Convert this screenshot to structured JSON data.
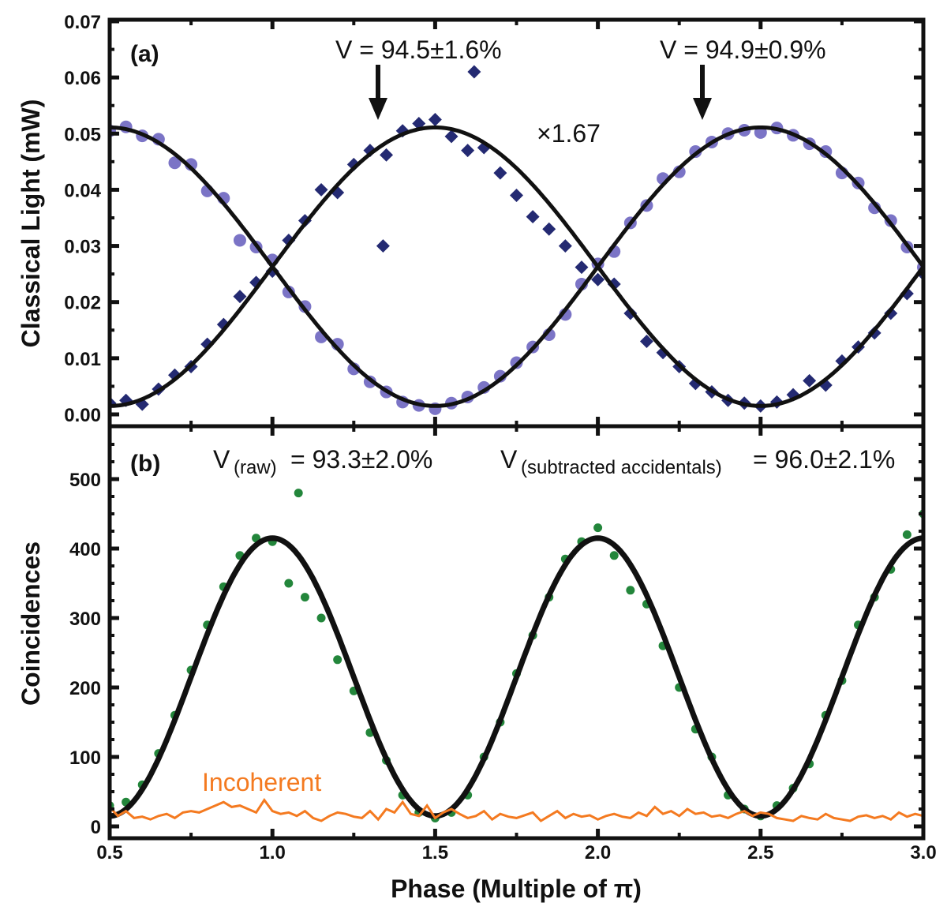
{
  "chart_data": [
    {
      "panel_label": "(a)",
      "type": "scatter",
      "ylabel": "Classical Light (mW)",
      "ylim": [
        0,
        0.07
      ],
      "xlim": [
        0.5,
        3.0
      ],
      "yticks": [
        "0.00",
        "0.01",
        "0.02",
        "0.03",
        "0.04",
        "0.05",
        "0.06",
        "0.07"
      ],
      "grid": false,
      "colors": {
        "circles": "#7b74c6",
        "diamonds": "#242a72",
        "fit": "#111111"
      },
      "annotations": {
        "v1": "V = 94.5±1.6%",
        "v2": "V = 94.9±0.9%",
        "scale": "×1.67"
      },
      "series": [
        {
          "marker": "circle",
          "x": [
            0.5,
            0.55,
            0.6,
            0.65,
            0.7,
            0.75,
            0.8,
            0.85,
            0.9,
            0.95,
            1.0,
            1.05,
            1.1,
            1.15,
            1.2,
            1.25,
            1.3,
            1.35,
            1.4,
            1.45,
            1.5,
            1.55,
            1.6,
            1.65,
            1.7,
            1.75,
            1.8,
            1.85,
            1.9,
            1.95,
            2.0,
            2.05,
            2.1,
            2.15,
            2.2,
            2.25,
            2.3,
            2.35,
            2.4,
            2.45,
            2.5,
            2.55,
            2.6,
            2.65,
            2.7,
            2.75,
            2.8,
            2.85,
            2.9,
            2.95,
            3.0
          ],
          "y": [
            0.0505,
            0.0512,
            0.0496,
            0.049,
            0.0448,
            0.0445,
            0.0398,
            0.0385,
            0.031,
            0.0298,
            0.0275,
            0.0218,
            0.0192,
            0.0138,
            0.0125,
            0.0081,
            0.0058,
            0.004,
            0.0022,
            0.0016,
            0.001,
            0.002,
            0.0031,
            0.0048,
            0.0068,
            0.0092,
            0.012,
            0.0142,
            0.0178,
            0.0232,
            0.0268,
            0.029,
            0.0341,
            0.0372,
            0.042,
            0.0432,
            0.0468,
            0.0485,
            0.05,
            0.0506,
            0.0502,
            0.051,
            0.0497,
            0.0482,
            0.0468,
            0.043,
            0.0412,
            0.0368,
            0.0345,
            0.0298,
            0.0262
          ],
          "fit": {
            "offset": 0.0263,
            "amplitude": 0.0248,
            "period": 2.0,
            "peak_at": 0.5
          }
        },
        {
          "marker": "diamond",
          "x": [
            0.5,
            0.55,
            0.6,
            0.65,
            0.7,
            0.75,
            0.8,
            0.85,
            0.9,
            0.95,
            1.0,
            1.05,
            1.1,
            1.15,
            1.2,
            1.25,
            1.3,
            1.34,
            1.35,
            1.4,
            1.45,
            1.5,
            1.55,
            1.6,
            1.62,
            1.65,
            1.7,
            1.75,
            1.8,
            1.85,
            1.9,
            1.95,
            2.0,
            2.05,
            2.1,
            2.15,
            2.2,
            2.25,
            2.3,
            2.35,
            2.4,
            2.45,
            2.5,
            2.55,
            2.6,
            2.65,
            2.7,
            2.75,
            2.8,
            2.85,
            2.9,
            2.95,
            3.0
          ],
          "y": [
            0.002,
            0.0025,
            0.0018,
            0.0045,
            0.007,
            0.0085,
            0.0125,
            0.016,
            0.021,
            0.0235,
            0.0255,
            0.031,
            0.0345,
            0.04,
            0.0395,
            0.0445,
            0.047,
            0.03,
            0.0462,
            0.0505,
            0.0518,
            0.0525,
            0.0495,
            0.047,
            0.061,
            0.0475,
            0.043,
            0.039,
            0.0352,
            0.033,
            0.03,
            0.0262,
            0.024,
            0.0232,
            0.018,
            0.013,
            0.011,
            0.0085,
            0.0055,
            0.004,
            0.0025,
            0.002,
            0.0015,
            0.0022,
            0.0035,
            0.006,
            0.0052,
            0.0095,
            0.012,
            0.0145,
            0.018,
            0.0215,
            0.025
          ],
          "fit": {
            "offset": 0.0263,
            "amplitude": -0.0248,
            "period": 2.0,
            "peak_at": 0.5
          }
        }
      ]
    },
    {
      "panel_label": "(b)",
      "type": "scatter",
      "xlabel": "Phase (Multiple of π)",
      "ylabel": "Coincidences",
      "ylim": [
        0,
        560
      ],
      "xlim": [
        0.5,
        3.0
      ],
      "xticks": [
        "0.5",
        "1.0",
        "1.5",
        "2.0",
        "2.5",
        "3.0"
      ],
      "yticks": [
        "0",
        "100",
        "200",
        "300",
        "400",
        "500"
      ],
      "grid": false,
      "colors": {
        "points": "#23863b",
        "fit": "#111111",
        "incoherent": "#f47a20"
      },
      "annotations": {
        "vraw_main": "V",
        "vraw_sub": "(raw)",
        "vraw_val": "= 93.3±2.0%",
        "vsub_main": "V",
        "vsub_sub": "(subtracted accidentals)",
        "vsub_val": "= 96.0±2.1%",
        "incoherent_label": "Incoherent"
      },
      "series": [
        {
          "marker": "circle",
          "x": [
            0.5,
            0.55,
            0.6,
            0.65,
            0.7,
            0.75,
            0.8,
            0.85,
            0.9,
            0.95,
            1.0,
            1.05,
            1.08,
            1.1,
            1.15,
            1.2,
            1.25,
            1.3,
            1.35,
            1.4,
            1.45,
            1.5,
            1.55,
            1.6,
            1.65,
            1.7,
            1.75,
            1.8,
            1.85,
            1.9,
            1.95,
            2.0,
            2.05,
            2.1,
            2.15,
            2.2,
            2.25,
            2.3,
            2.35,
            2.4,
            2.45,
            2.5,
            2.55,
            2.6,
            2.65,
            2.7,
            2.75,
            2.8,
            2.85,
            2.9,
            2.95,
            3.0
          ],
          "y": [
            30,
            35,
            60,
            105,
            160,
            225,
            290,
            345,
            390,
            415,
            410,
            350,
            480,
            330,
            300,
            240,
            195,
            135,
            95,
            45,
            20,
            12,
            20,
            45,
            100,
            150,
            220,
            275,
            330,
            385,
            410,
            430,
            390,
            340,
            320,
            260,
            200,
            140,
            100,
            45,
            25,
            15,
            30,
            55,
            90,
            160,
            210,
            290,
            330,
            370,
            420,
            450
          ],
          "fit": {
            "offset": 215,
            "amplitude": 200,
            "period": 1.0,
            "peak_at": 1.0
          }
        },
        {
          "name": "Incoherent",
          "type": "line",
          "x_start": 0.5,
          "x_end": 3.0,
          "y": [
            28,
            15,
            22,
            12,
            14,
            10,
            15,
            18,
            12,
            20,
            22,
            20,
            25,
            30,
            35,
            28,
            30,
            25,
            20,
            38,
            22,
            18,
            20,
            15,
            22,
            12,
            8,
            15,
            20,
            18,
            14,
            12,
            22,
            10,
            25,
            20,
            35,
            18,
            15,
            30,
            12,
            20,
            25,
            18,
            12,
            15,
            22,
            10,
            18,
            14,
            12,
            16,
            20,
            8,
            15,
            22,
            12,
            18,
            14,
            16,
            10,
            15,
            18,
            14,
            12,
            20,
            15,
            28,
            18,
            22,
            15,
            25,
            18,
            20,
            14,
            16,
            12,
            18,
            22,
            15,
            20,
            18,
            12,
            10,
            8,
            15,
            12,
            10,
            18,
            12,
            10,
            8,
            14,
            16,
            12,
            15,
            10,
            20,
            14,
            18,
            15
          ]
        }
      ]
    }
  ]
}
